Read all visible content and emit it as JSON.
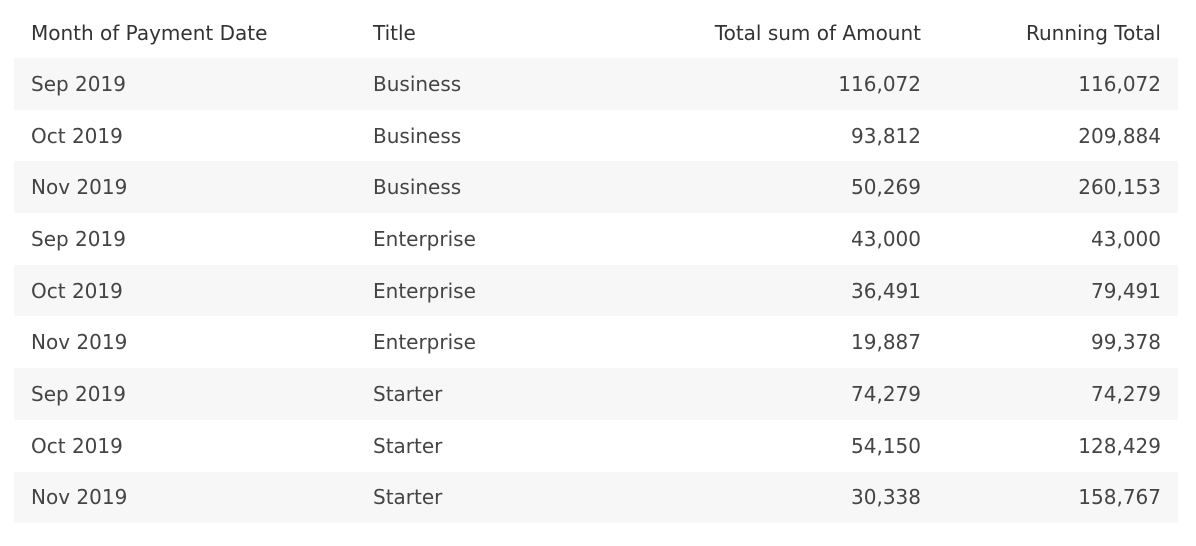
{
  "chart_data": {
    "type": "table",
    "columns": [
      "Month of Payment Date",
      "Title",
      "Total sum of Amount",
      "Running Total"
    ],
    "rows": [
      [
        "Sep 2019",
        "Business",
        "116,072",
        "116,072"
      ],
      [
        "Oct 2019",
        "Business",
        "93,812",
        "209,884"
      ],
      [
        "Nov 2019",
        "Business",
        "50,269",
        "260,153"
      ],
      [
        "Sep 2019",
        "Enterprise",
        "43,000",
        "43,000"
      ],
      [
        "Oct 2019",
        "Enterprise",
        "36,491",
        "79,491"
      ],
      [
        "Nov 2019",
        "Enterprise",
        "19,887",
        "99,378"
      ],
      [
        "Sep 2019",
        "Starter",
        "74,279",
        "74,279"
      ],
      [
        "Oct 2019",
        "Starter",
        "54,150",
        "128,429"
      ],
      [
        "Nov 2019",
        "Starter",
        "30,338",
        "158,767"
      ]
    ]
  },
  "colors": {
    "row_stripe": "#f7f7f7",
    "text": "#333333"
  }
}
